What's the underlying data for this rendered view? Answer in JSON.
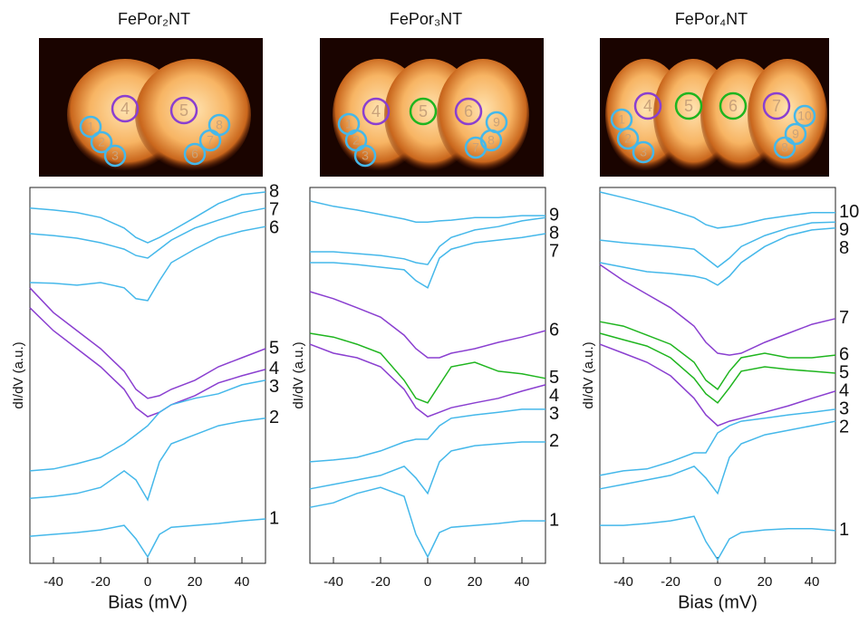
{
  "chart_data": [
    {
      "type": "line",
      "title": "FePor₂NT",
      "x_label": "Bias (mV)",
      "y_label": "dI/dV (a.u.)",
      "x": [
        -50,
        -40,
        -30,
        -20,
        -10,
        -5,
        0,
        5,
        10,
        20,
        30,
        40,
        50
      ],
      "xlim": [
        -50,
        50
      ],
      "xticks": [
        -40,
        -20,
        0,
        20,
        40
      ],
      "ylim": [
        0,
        100
      ],
      "series": [
        {
          "name": "8",
          "color": "#45b8ea",
          "values": [
            94.5,
            94,
            93.3,
            92,
            89.2,
            86.7,
            85.3,
            86.7,
            88.4,
            92,
            95.7,
            98.1,
            98.8
          ]
        },
        {
          "name": "7",
          "color": "#45b8ea",
          "values": [
            87.7,
            87.2,
            86.5,
            85.3,
            83.6,
            81.9,
            81.2,
            83.6,
            86,
            89.2,
            91.3,
            93.3,
            94.5
          ]
        },
        {
          "name": "6",
          "color": "#45b8ea",
          "values": [
            74.7,
            74.5,
            74,
            74.7,
            73.3,
            70.4,
            69.9,
            75.2,
            80,
            83.6,
            86.7,
            88.4,
            89.6
          ]
        },
        {
          "name": "5",
          "color": "#8a3fd0",
          "values": [
            73.3,
            66.7,
            61.9,
            57.1,
            51.1,
            46.3,
            43.9,
            44.6,
            46.3,
            48.7,
            52.3,
            54.7,
            57.1
          ]
        },
        {
          "name": "4",
          "color": "#8a3fd0",
          "values": [
            68,
            61.9,
            57.1,
            52.3,
            46.3,
            41.4,
            39,
            40.2,
            42.2,
            44.6,
            48,
            49.9,
            51.6
          ]
        },
        {
          "name": "3",
          "color": "#45b8ea",
          "values": [
            24.6,
            25.1,
            26.5,
            28.2,
            31.8,
            34.2,
            36.6,
            40.2,
            42.2,
            43.9,
            45.1,
            47.5,
            48.7
          ]
        },
        {
          "name": "2",
          "color": "#45b8ea",
          "values": [
            17.3,
            17.8,
            18.6,
            20.2,
            24.6,
            22.2,
            16.9,
            27,
            31.8,
            34.2,
            36.6,
            37.8,
            38.6
          ]
        },
        {
          "name": "1",
          "color": "#45b8ea",
          "values": [
            7.2,
            7.7,
            8.2,
            8.9,
            10.1,
            6.5,
            1.7,
            7.7,
            9.6,
            10.1,
            10.6,
            11.3,
            11.8
          ]
        }
      ]
    },
    {
      "type": "line",
      "title": "FePor₃NT",
      "y_label": "dI/dV (a.u.)",
      "x": [
        -50,
        -40,
        -30,
        -20,
        -10,
        -5,
        0,
        5,
        10,
        20,
        30,
        40,
        50
      ],
      "xlim": [
        -50,
        50
      ],
      "xticks": [
        -40,
        -20,
        0,
        20,
        40
      ],
      "ylim": [
        0,
        100
      ],
      "series": [
        {
          "name": "9",
          "color": "#45b8ea",
          "values": [
            96.4,
            95,
            94,
            92.8,
            91.6,
            90.8,
            90.8,
            91.1,
            91.3,
            92,
            92,
            92.5,
            92.5
          ]
        },
        {
          "name": "8",
          "color": "#45b8ea",
          "values": [
            82.9,
            82.9,
            82.4,
            81.9,
            81,
            80,
            79.5,
            84.3,
            86.7,
            88.7,
            89.6,
            91.1,
            92
          ]
        },
        {
          "name": "7",
          "color": "#45b8ea",
          "values": [
            80,
            80,
            79.5,
            78.8,
            78.1,
            75.2,
            73.3,
            81.2,
            83.6,
            85.3,
            86,
            86.7,
            87.7
          ]
        },
        {
          "name": "6",
          "color": "#8a3fd0",
          "values": [
            72.3,
            70.4,
            68,
            65.5,
            60.7,
            57.1,
            54.7,
            54.7,
            55.9,
            57.1,
            58.8,
            60.2,
            61.9
          ]
        },
        {
          "name": "5",
          "color": "#1fb51f",
          "values": [
            61.2,
            60.2,
            58.3,
            55.9,
            48.7,
            43.9,
            42.7,
            47.5,
            52.3,
            53.5,
            51.1,
            50.4,
            49.2
          ]
        },
        {
          "name": "4",
          "color": "#8a3fd0",
          "values": [
            58.3,
            55.9,
            54.7,
            52.3,
            46.3,
            41.4,
            39,
            40.2,
            41.4,
            42.7,
            43.9,
            45.8,
            47.5
          ]
        },
        {
          "name": "3",
          "color": "#45b8ea",
          "values": [
            27,
            27.5,
            28.2,
            29.9,
            32.3,
            33,
            33,
            36.6,
            38.6,
            39.5,
            40.2,
            41,
            41
          ]
        },
        {
          "name": "2",
          "color": "#45b8ea",
          "values": [
            19.8,
            21,
            22.2,
            23.4,
            25.8,
            22.7,
            18.6,
            27,
            29.9,
            31.3,
            31.8,
            32.3,
            32.3
          ]
        },
        {
          "name": "1",
          "color": "#45b8ea",
          "values": [
            14.9,
            16.1,
            18.6,
            20.2,
            17.8,
            7.7,
            1.7,
            8.2,
            9.6,
            10.1,
            10.6,
            11.3,
            11.3
          ]
        }
      ]
    },
    {
      "type": "line",
      "title": "FePor₄NT",
      "x_label": "Bias (mV)",
      "y_label": "dI/dV (a.u.)",
      "x": [
        -50,
        -40,
        -30,
        -20,
        -10,
        -5,
        0,
        5,
        10,
        20,
        30,
        40,
        50
      ],
      "xlim": [
        -50,
        50
      ],
      "xticks": [
        -40,
        -20,
        0,
        20,
        40
      ],
      "ylim": [
        0,
        100
      ],
      "series": [
        {
          "name": "10",
          "color": "#45b8ea",
          "values": [
            98.8,
            97.3,
            95.7,
            94,
            92,
            90.1,
            89.2,
            89.6,
            90.1,
            91.6,
            92.5,
            93.3,
            93.3
          ]
        },
        {
          "name": "9",
          "color": "#45b8ea",
          "values": [
            86,
            85.3,
            84.8,
            84.3,
            83.6,
            81.2,
            78.8,
            81.2,
            84.3,
            87.2,
            89.2,
            90.6,
            90.8
          ]
        },
        {
          "name": "8",
          "color": "#45b8ea",
          "values": [
            80,
            78.8,
            77.6,
            77.1,
            76.4,
            75.7,
            74,
            76.4,
            80,
            84.3,
            87.2,
            88.7,
            89.2
          ]
        },
        {
          "name": "7",
          "color": "#8a3fd0",
          "values": [
            79.5,
            75.2,
            71.6,
            68,
            63.1,
            58.8,
            55.9,
            55.4,
            55.9,
            58.8,
            61.2,
            63.6,
            65.1
          ]
        },
        {
          "name": "6",
          "color": "#1fb51f",
          "values": [
            64.3,
            63.1,
            60.7,
            58.3,
            53.5,
            48.7,
            46.3,
            51.1,
            54.7,
            55.9,
            54.7,
            54.7,
            55.4
          ]
        },
        {
          "name": "5",
          "color": "#1fb51f",
          "values": [
            61.2,
            59.5,
            57.8,
            54.7,
            49.2,
            45.1,
            42.7,
            46.7,
            51.1,
            52.3,
            51.6,
            51.1,
            50.6
          ]
        },
        {
          "name": "4",
          "color": "#8a3fd0",
          "values": [
            58.3,
            55.9,
            53.5,
            49.9,
            43.9,
            39.5,
            36.6,
            37.8,
            38.6,
            40.2,
            41.9,
            43.9,
            45.8
          ]
        },
        {
          "name": "3",
          "color": "#45b8ea",
          "values": [
            23.4,
            24.6,
            25.1,
            27,
            29.4,
            29.4,
            34.7,
            36.6,
            37.8,
            38.6,
            39.5,
            40.2,
            41
          ]
        },
        {
          "name": "2",
          "color": "#45b8ea",
          "values": [
            19.8,
            21,
            22.2,
            23.4,
            25.8,
            22.7,
            18.6,
            28.2,
            31.8,
            34.2,
            35.4,
            36.6,
            37.8
          ]
        },
        {
          "name": "1",
          "color": "#45b8ea",
          "values": [
            10.1,
            10.1,
            10.6,
            11.3,
            12.5,
            5.8,
            1,
            6.5,
            8.2,
            8.9,
            9.2,
            9.2,
            8.7
          ]
        }
      ]
    }
  ]
}
